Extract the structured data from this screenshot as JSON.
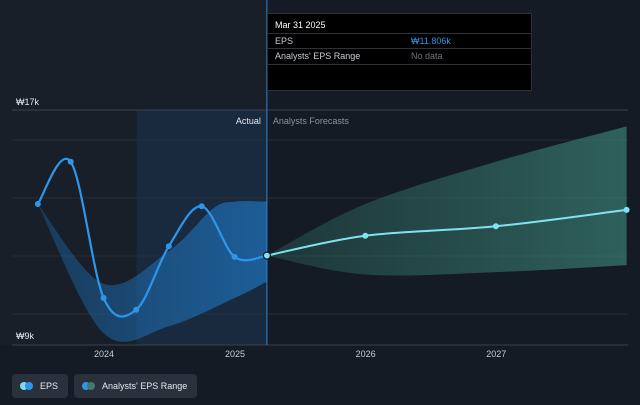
{
  "chart_data": {
    "type": "line",
    "ylabels": {
      "top": "₩17k",
      "bottom": "₩9k"
    },
    "ylim": [
      8000,
      18000
    ],
    "x_ticks": [
      "2024",
      "2025",
      "2026",
      "2027"
    ],
    "section_labels": {
      "actual": "Actual",
      "forecast": "Analysts Forecasts"
    },
    "divider_date": "2025-03-31",
    "highlight_start": "2024-04-01",
    "eps_actual": [
      {
        "x": "2023-06-30",
        "y": 14000
      },
      {
        "x": "2023-09-30",
        "y": 15800
      },
      {
        "x": "2023-12-31",
        "y": 10000
      },
      {
        "x": "2024-03-31",
        "y": 9500
      },
      {
        "x": "2024-06-30",
        "y": 12200
      },
      {
        "x": "2024-09-30",
        "y": 13900
      },
      {
        "x": "2024-12-31",
        "y": 11750
      },
      {
        "x": "2025-03-31",
        "y": 11806
      }
    ],
    "eps_forecast": [
      {
        "x": "2025-03-31",
        "y": 11806
      },
      {
        "x": "2025-12-31",
        "y": 12650
      },
      {
        "x": "2026-12-31",
        "y": 13050
      },
      {
        "x": "2027-12-31",
        "y": 13750
      }
    ],
    "historic_range": {
      "upper": [
        {
          "x": "2023-06-30",
          "y": 14000
        },
        {
          "x": "2023-12-31",
          "y": 10600
        },
        {
          "x": "2024-06-30",
          "y": 12000
        },
        {
          "x": "2024-10-31",
          "y": 13800
        },
        {
          "x": "2024-12-31",
          "y": 14100
        },
        {
          "x": "2025-03-31",
          "y": 14100
        }
      ],
      "lower": [
        {
          "x": "2023-06-30",
          "y": 14000
        },
        {
          "x": "2023-12-31",
          "y": 8500
        },
        {
          "x": "2024-06-30",
          "y": 8800
        },
        {
          "x": "2024-12-31",
          "y": 10000
        },
        {
          "x": "2025-03-31",
          "y": 10700
        }
      ]
    },
    "forecast_range": {
      "upper": [
        {
          "x": "2025-03-31",
          "y": 11806
        },
        {
          "x": "2025-12-31",
          "y": 14000
        },
        {
          "x": "2026-12-31",
          "y": 15800
        },
        {
          "x": "2027-12-31",
          "y": 17300
        }
      ],
      "lower": [
        {
          "x": "2025-03-31",
          "y": 11806
        },
        {
          "x": "2025-12-31",
          "y": 11000
        },
        {
          "x": "2026-12-31",
          "y": 11100
        },
        {
          "x": "2027-12-31",
          "y": 11400
        }
      ]
    }
  },
  "tooltip": {
    "date": "Mar 31 2025",
    "eps_label": "EPS",
    "eps_value": "₩11.806k",
    "range_label": "Analysts' EPS Range",
    "range_value": "No data"
  },
  "legend": {
    "eps_label": "EPS",
    "range_label": "Analysts' EPS Range"
  },
  "colors": {
    "background": "#151b24",
    "eps_line": "#2e96ea",
    "forecast_line": "#7fe3f0",
    "historic_band": "#1e6fb5",
    "forecast_band": "#2f6b63"
  }
}
